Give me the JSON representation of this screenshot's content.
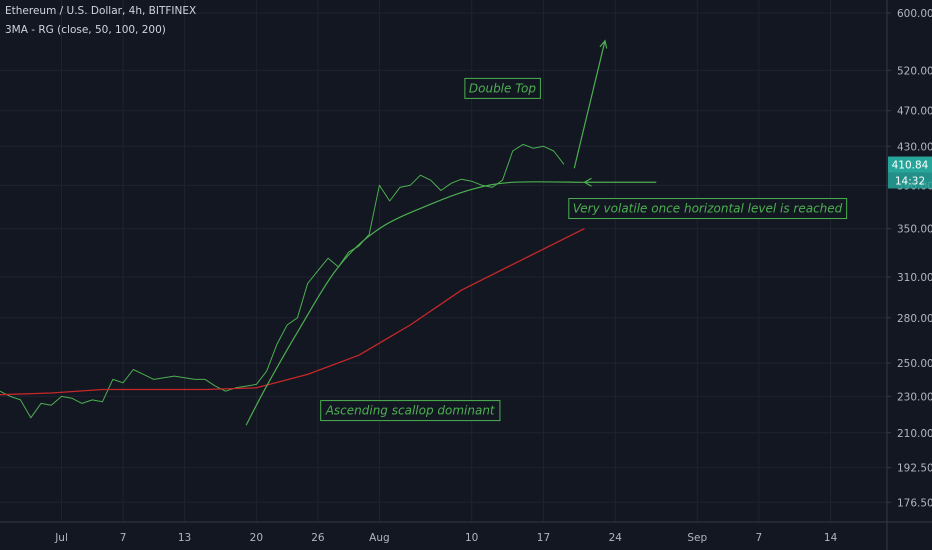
{
  "header": {
    "symbol_line": "Ethereum / U.S. Dollar, 4h, BITFINEX",
    "indicator_line": "3MA - RG (close, 50, 100, 200)"
  },
  "chart_data": {
    "type": "line",
    "y_scale": "log",
    "ylim": [
      168,
      620
    ],
    "y_ticks": [
      {
        "value": 600,
        "label": "600.00"
      },
      {
        "value": 520,
        "label": "520.00"
      },
      {
        "value": 470,
        "label": "470.00"
      },
      {
        "value": 430,
        "label": "430.00"
      },
      {
        "value": 390,
        "label": "390.00"
      },
      {
        "value": 350,
        "label": "350.00"
      },
      {
        "value": 310,
        "label": "310.00"
      },
      {
        "value": 280,
        "label": "280.00"
      },
      {
        "value": 250,
        "label": "250.00"
      },
      {
        "value": 230,
        "label": "230.00"
      },
      {
        "value": 210,
        "label": "210.00"
      },
      {
        "value": 192.5,
        "label": "192.50"
      },
      {
        "value": 176.5,
        "label": "176.50"
      }
    ],
    "x_ticks": [
      {
        "date": "2020-07-01",
        "label": "Jul"
      },
      {
        "date": "2020-07-07",
        "label": "7"
      },
      {
        "date": "2020-07-13",
        "label": "13"
      },
      {
        "date": "2020-07-20",
        "label": "20"
      },
      {
        "date": "2020-07-26",
        "label": "26"
      },
      {
        "date": "2020-08-01",
        "label": "Aug"
      },
      {
        "date": "2020-08-10",
        "label": "10"
      },
      {
        "date": "2020-08-17",
        "label": "17"
      },
      {
        "date": "2020-08-24",
        "label": "24"
      },
      {
        "date": "2020-09-01",
        "label": "Sep"
      },
      {
        "date": "2020-09-07",
        "label": "7"
      },
      {
        "date": "2020-09-14",
        "label": "14"
      }
    ],
    "grid": true,
    "series": [
      {
        "color": "#4caf50",
        "points": [
          [
            "2020-06-25",
            233
          ],
          [
            "2020-06-26",
            230
          ],
          [
            "2020-06-27",
            228
          ],
          [
            "2020-06-28",
            218
          ],
          [
            "2020-06-29",
            226
          ],
          [
            "2020-06-30",
            225
          ],
          [
            "2020-07-01",
            230
          ],
          [
            "2020-07-02",
            229
          ],
          [
            "2020-07-03",
            226
          ],
          [
            "2020-07-04",
            228
          ],
          [
            "2020-07-05",
            227
          ],
          [
            "2020-07-06",
            240
          ],
          [
            "2020-07-07",
            238
          ],
          [
            "2020-07-08",
            246
          ],
          [
            "2020-07-09",
            243
          ],
          [
            "2020-07-10",
            240
          ],
          [
            "2020-07-11",
            241
          ],
          [
            "2020-07-12",
            242
          ],
          [
            "2020-07-13",
            241
          ],
          [
            "2020-07-14",
            240
          ],
          [
            "2020-07-15",
            240
          ],
          [
            "2020-07-16",
            236
          ],
          [
            "2020-07-17",
            233
          ],
          [
            "2020-07-18",
            235
          ],
          [
            "2020-07-19",
            236
          ],
          [
            "2020-07-20",
            237
          ],
          [
            "2020-07-21",
            245
          ],
          [
            "2020-07-22",
            262
          ],
          [
            "2020-07-23",
            275
          ],
          [
            "2020-07-24",
            280
          ],
          [
            "2020-07-25",
            305
          ],
          [
            "2020-07-26",
            315
          ],
          [
            "2020-07-27",
            325
          ],
          [
            "2020-07-28",
            318
          ],
          [
            "2020-07-29",
            330
          ],
          [
            "2020-07-30",
            335
          ],
          [
            "2020-07-31",
            345
          ],
          [
            "2020-08-01",
            390
          ],
          [
            "2020-08-02",
            375
          ],
          [
            "2020-08-03",
            388
          ],
          [
            "2020-08-04",
            390
          ],
          [
            "2020-08-05",
            400
          ],
          [
            "2020-08-06",
            395
          ],
          [
            "2020-08-07",
            385
          ],
          [
            "2020-08-08",
            392
          ],
          [
            "2020-08-09",
            396
          ],
          [
            "2020-08-10",
            394
          ],
          [
            "2020-08-11",
            390
          ],
          [
            "2020-08-12",
            388
          ],
          [
            "2020-08-13",
            395
          ],
          [
            "2020-08-14",
            425
          ],
          [
            "2020-08-15",
            432
          ],
          [
            "2020-08-16",
            428
          ],
          [
            "2020-08-17",
            430
          ],
          [
            "2020-08-18",
            425
          ],
          [
            "2020-08-19",
            411
          ]
        ]
      },
      {
        "color": "#c62828",
        "points": [
          [
            "2020-06-25",
            231
          ],
          [
            "2020-06-30",
            232
          ],
          [
            "2020-07-05",
            234
          ],
          [
            "2020-07-10",
            234
          ],
          [
            "2020-07-15",
            234
          ],
          [
            "2020-07-20",
            235
          ],
          [
            "2020-07-25",
            243
          ],
          [
            "2020-07-30",
            255
          ],
          [
            "2020-08-04",
            275
          ],
          [
            "2020-08-09",
            300
          ],
          [
            "2020-08-14",
            320
          ],
          [
            "2020-08-21",
            350
          ]
        ]
      }
    ],
    "scallop_curve": {
      "color": "#4caf50",
      "points": [
        [
          "2020-07-19",
          214
        ],
        [
          "2020-07-21",
          236
        ],
        [
          "2020-07-24",
          270
        ],
        [
          "2020-07-28",
          318
        ],
        [
          "2020-08-01",
          350
        ],
        [
          "2020-08-06",
          372
        ],
        [
          "2020-08-10",
          386
        ],
        [
          "2020-08-14",
          393
        ],
        [
          "2020-08-21",
          393
        ]
      ]
    },
    "horizontal_arrow": {
      "from": [
        "2020-08-28",
        393
      ],
      "to": [
        "2020-08-21",
        393
      ]
    },
    "up_arrow": {
      "from": [
        "2020-08-20",
        407
      ],
      "to": [
        "2020-08-23",
        560
      ]
    },
    "annotations": [
      {
        "text": "Double Top",
        "at": [
          "2020-08-13",
          497
        ]
      },
      {
        "text": "Ascending scallop dominant",
        "at": [
          "2020-08-04",
          222
        ]
      },
      {
        "text": "Very volatile once horizontal level is reached",
        "at": [
          "2020-09-02",
          368
        ]
      }
    ],
    "price_badge": {
      "price": 410.84,
      "label": "410.84",
      "color": "#26a69a"
    },
    "countdown_badge": {
      "label": "14:32",
      "color": "#26a69a"
    }
  }
}
